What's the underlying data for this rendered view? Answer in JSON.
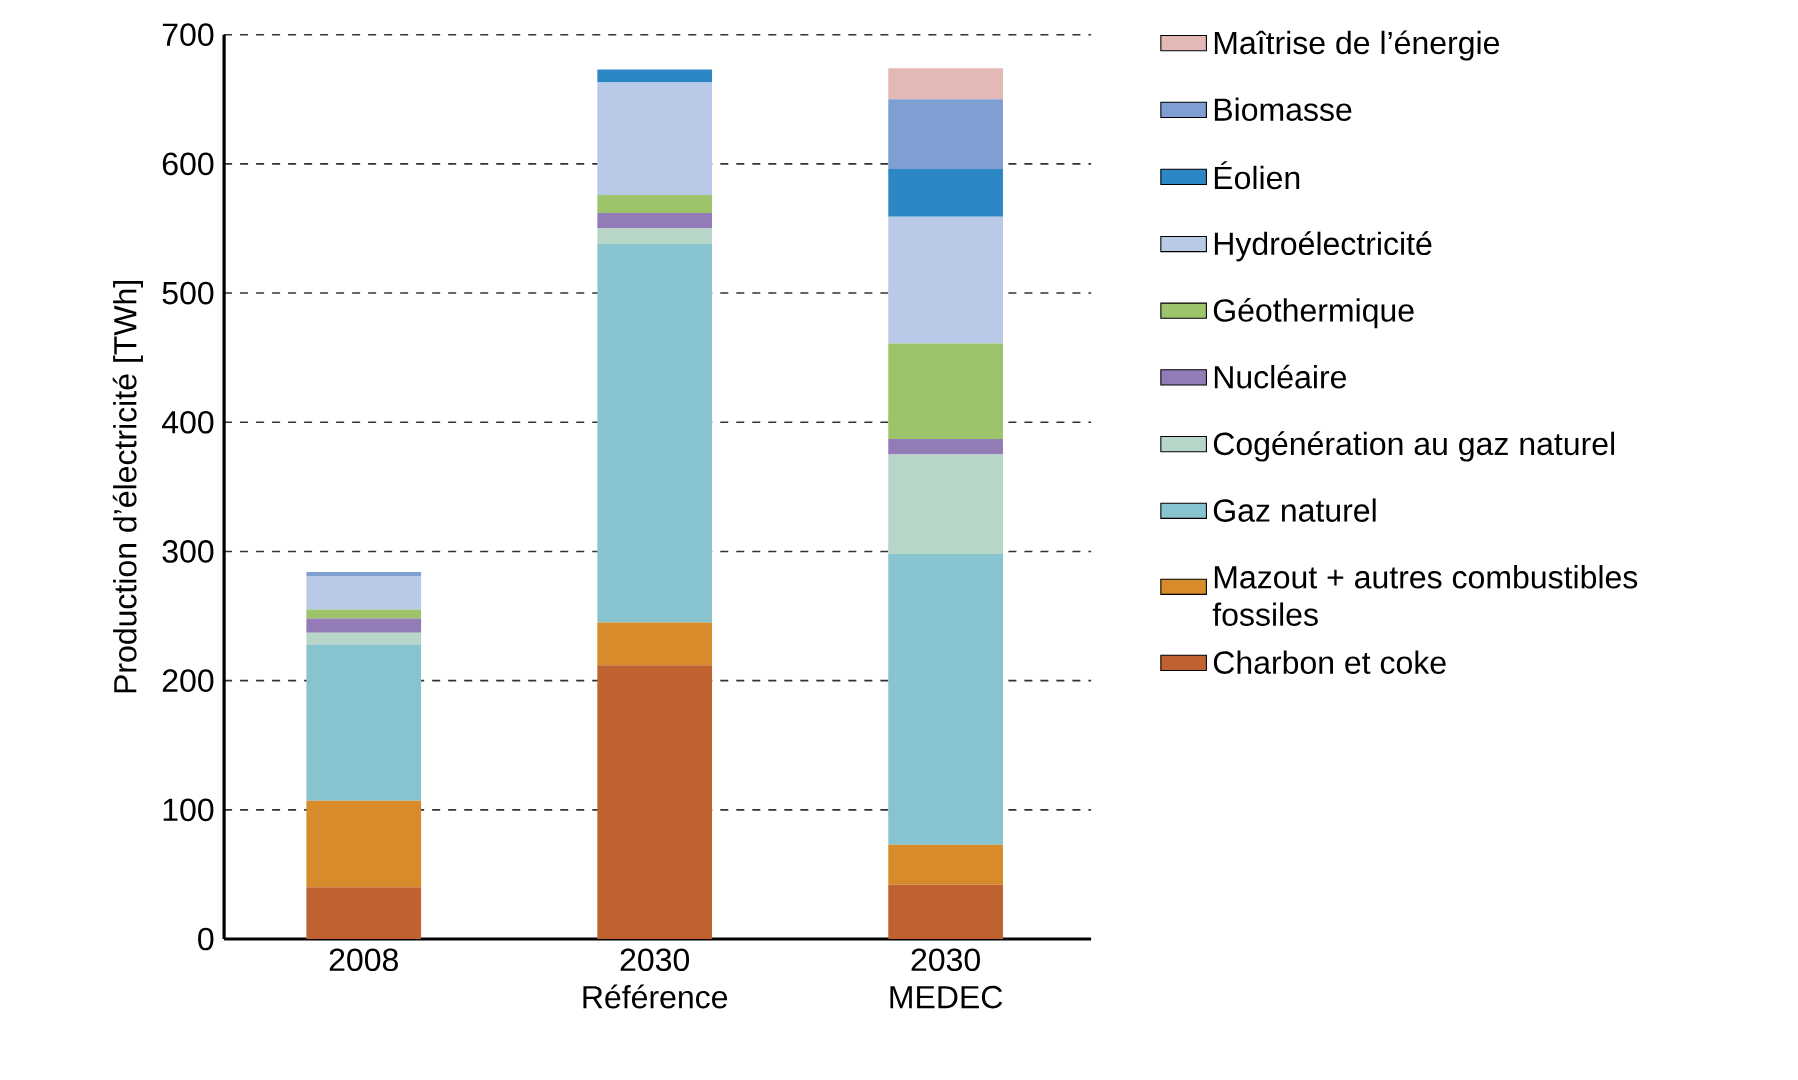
{
  "chart_data": {
    "type": "bar",
    "stacked": true,
    "ylabel": "Production d’électricité [TWh]",
    "categories": [
      "2008",
      "2030 Référence",
      "2030 MEDEC"
    ],
    "series": [
      {
        "name": "Charbon et coke",
        "color": "#c0622f",
        "values": [
          40,
          212,
          42
        ]
      },
      {
        "name": "Mazout + autres combustibles fossiles",
        "color": "#d78b2a",
        "values": [
          67,
          33,
          31
        ]
      },
      {
        "name": "Gaz naturel",
        "color": "#88c4cf",
        "values": [
          121,
          293,
          225
        ]
      },
      {
        "name": "Cogénération au gaz naturel",
        "color": "#b8d6c7",
        "values": [
          9,
          12,
          77
        ]
      },
      {
        "name": "Nucléaire",
        "color": "#927bb7",
        "values": [
          11,
          12,
          12
        ]
      },
      {
        "name": "Géothermique",
        "color": "#9dc46a",
        "values": [
          7,
          14,
          74
        ]
      },
      {
        "name": "Hydroélectricité",
        "color": "#bac9e8",
        "values": [
          26,
          87,
          98
        ]
      },
      {
        "name": "Éolien",
        "color": "#2e87c5",
        "values": [
          0,
          10,
          37
        ]
      },
      {
        "name": "Biomasse",
        "color": "#7f9fd3",
        "values": [
          3,
          0,
          54
        ]
      },
      {
        "name": "Maîtrise de l’énergie",
        "color": "#e3b8b6",
        "values": [
          0,
          0,
          24
        ]
      }
    ],
    "ylim": [
      0,
      700
    ],
    "yticks": [
      0,
      100,
      200,
      300,
      400,
      500,
      600,
      700
    ],
    "grid": "y",
    "legend": "right"
  }
}
